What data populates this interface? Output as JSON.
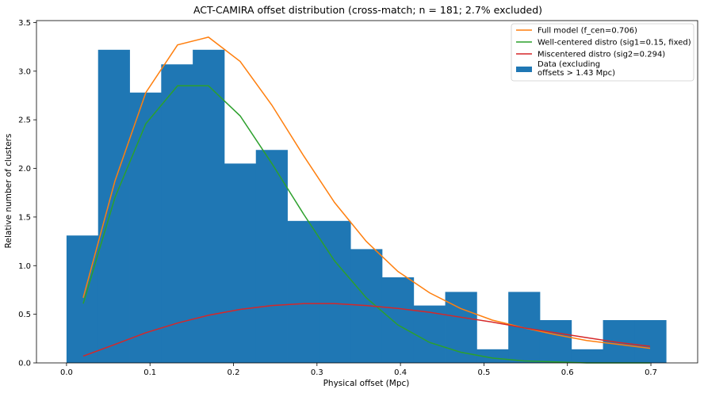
{
  "chart_data": {
    "type": "bar",
    "title": "ACT-CAMIRA offset distribution (cross-match; n = 181; 2.7% excluded)",
    "xlabel": "Physical offset (Mpc)",
    "ylabel": "Relative number of clusters",
    "xlim": [
      -0.036,
      0.756
    ],
    "ylim": [
      0,
      3.52
    ],
    "grid": false,
    "legend_position": "top-right",
    "x_ticks": [
      0.0,
      0.1,
      0.2,
      0.3,
      0.4,
      0.5,
      0.6,
      0.7
    ],
    "x_tick_labels": [
      "0.0",
      "0.1",
      "0.2",
      "0.3",
      "0.4",
      "0.5",
      "0.6",
      "0.7"
    ],
    "y_ticks": [
      0.0,
      0.5,
      1.0,
      1.5,
      2.0,
      2.5,
      3.0,
      3.5
    ],
    "y_tick_labels": [
      "0.0",
      "0.5",
      "1.0",
      "1.5",
      "2.0",
      "2.5",
      "3.0",
      "3.5"
    ],
    "histogram": {
      "name": "Data (excluding\noffsets > 1.43 Mpc)",
      "color": "#1f77b4",
      "bin_edges": [
        0.0,
        0.0378,
        0.0756,
        0.1134,
        0.1512,
        0.189,
        0.2268,
        0.2646,
        0.3024,
        0.3402,
        0.378,
        0.4158,
        0.4536,
        0.4914,
        0.5292,
        0.567,
        0.6048,
        0.6426,
        0.6804,
        0.7182
      ],
      "values": [
        1.31,
        3.22,
        2.78,
        3.07,
        3.22,
        2.05,
        2.19,
        1.46,
        1.46,
        1.17,
        0.88,
        0.59,
        0.73,
        0.14,
        0.73,
        0.44,
        0.14,
        0.44,
        0.44
      ]
    },
    "series": [
      {
        "name": "Full model (f_cen=0.706)",
        "color": "#ff7f0e",
        "x": [
          0.02,
          0.058,
          0.095,
          0.133,
          0.17,
          0.208,
          0.246,
          0.284,
          0.321,
          0.359,
          0.397,
          0.435,
          0.472,
          0.51,
          0.548,
          0.586,
          0.623,
          0.661,
          0.699
        ],
        "y": [
          0.67,
          1.87,
          2.78,
          3.27,
          3.35,
          3.1,
          2.65,
          2.13,
          1.65,
          1.25,
          0.94,
          0.72,
          0.56,
          0.44,
          0.36,
          0.29,
          0.23,
          0.19,
          0.15
        ]
      },
      {
        "name": "Well-centered distro (sig1=0.15, fixed)",
        "color": "#2ca02c",
        "x": [
          0.02,
          0.058,
          0.095,
          0.133,
          0.17,
          0.208,
          0.246,
          0.284,
          0.321,
          0.359,
          0.397,
          0.435,
          0.472,
          0.51,
          0.548,
          0.586,
          0.623,
          0.661,
          0.699
        ],
        "y": [
          0.61,
          1.7,
          2.46,
          2.85,
          2.85,
          2.54,
          2.05,
          1.53,
          1.05,
          0.67,
          0.39,
          0.21,
          0.11,
          0.05,
          0.02,
          0.01,
          0.0,
          0.0,
          0.0
        ]
      },
      {
        "name": "Miscentered distro (sig2=0.294)",
        "color": "#d62728",
        "x": [
          0.02,
          0.058,
          0.095,
          0.133,
          0.17,
          0.208,
          0.246,
          0.284,
          0.321,
          0.359,
          0.397,
          0.435,
          0.472,
          0.51,
          0.548,
          0.586,
          0.623,
          0.661,
          0.699
        ],
        "y": [
          0.07,
          0.19,
          0.31,
          0.41,
          0.49,
          0.55,
          0.59,
          0.61,
          0.61,
          0.59,
          0.56,
          0.52,
          0.47,
          0.42,
          0.36,
          0.31,
          0.26,
          0.21,
          0.17
        ]
      }
    ]
  }
}
